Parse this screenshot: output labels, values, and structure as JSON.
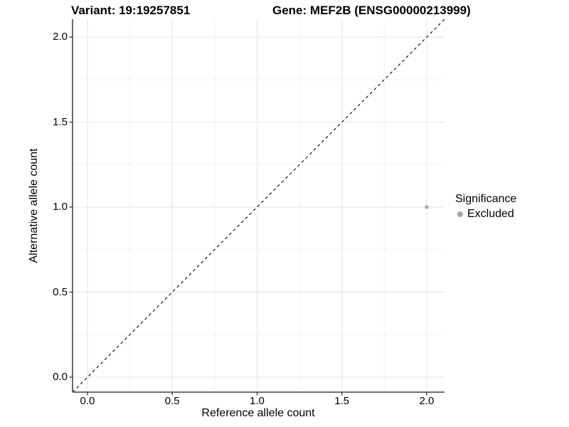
{
  "header": {
    "variant_title": "Variant: 19:19257851",
    "gene_title": "Gene: MEF2B (ENSG00000213999)"
  },
  "axes": {
    "x": {
      "label": "Reference allele count",
      "tick_labels": [
        "0.0",
        "0.5",
        "1.0",
        "1.5",
        "2.0"
      ],
      "tick_values": [
        0,
        0.5,
        1,
        1.5,
        2
      ],
      "minor_tick_values": [
        0.25,
        0.75,
        1.25,
        1.75
      ]
    },
    "y": {
      "label": "Alternative allele count",
      "tick_labels": [
        "0.0",
        "0.5",
        "1.0",
        "1.5",
        "2.0"
      ],
      "tick_values": [
        0,
        0.5,
        1,
        1.5,
        2
      ],
      "minor_tick_values": [
        0.25,
        0.75,
        1.25,
        1.75
      ]
    }
  },
  "legend": {
    "title": "Significance",
    "items": [
      {
        "label": "Excluded",
        "color": "#a6a6a6"
      }
    ]
  },
  "chart_data": {
    "type": "scatter",
    "title": "Variant: 19:19257851 | Gene: MEF2B (ENSG00000213999)",
    "xlabel": "Reference allele count",
    "ylabel": "Alternative allele count",
    "xlim": [
      -0.088,
      2.105
    ],
    "ylim": [
      -0.088,
      2.105
    ],
    "grid": true,
    "legend_position": "right",
    "series": [
      {
        "name": "Excluded",
        "color": "#a6a6a6",
        "points": [
          {
            "x": 2.0,
            "y": 1.0
          }
        ]
      }
    ],
    "reference_line": {
      "equation": "y = x",
      "style": "dashed",
      "color": "#111111"
    }
  },
  "colors": {
    "background": "#ffffff",
    "grid_major": "#e8e8e8",
    "grid_minor": "#f3f3f3",
    "axis_line": "#595959",
    "tick_mark": "#333333",
    "text": "#000000",
    "point": "#a6a6a6"
  }
}
